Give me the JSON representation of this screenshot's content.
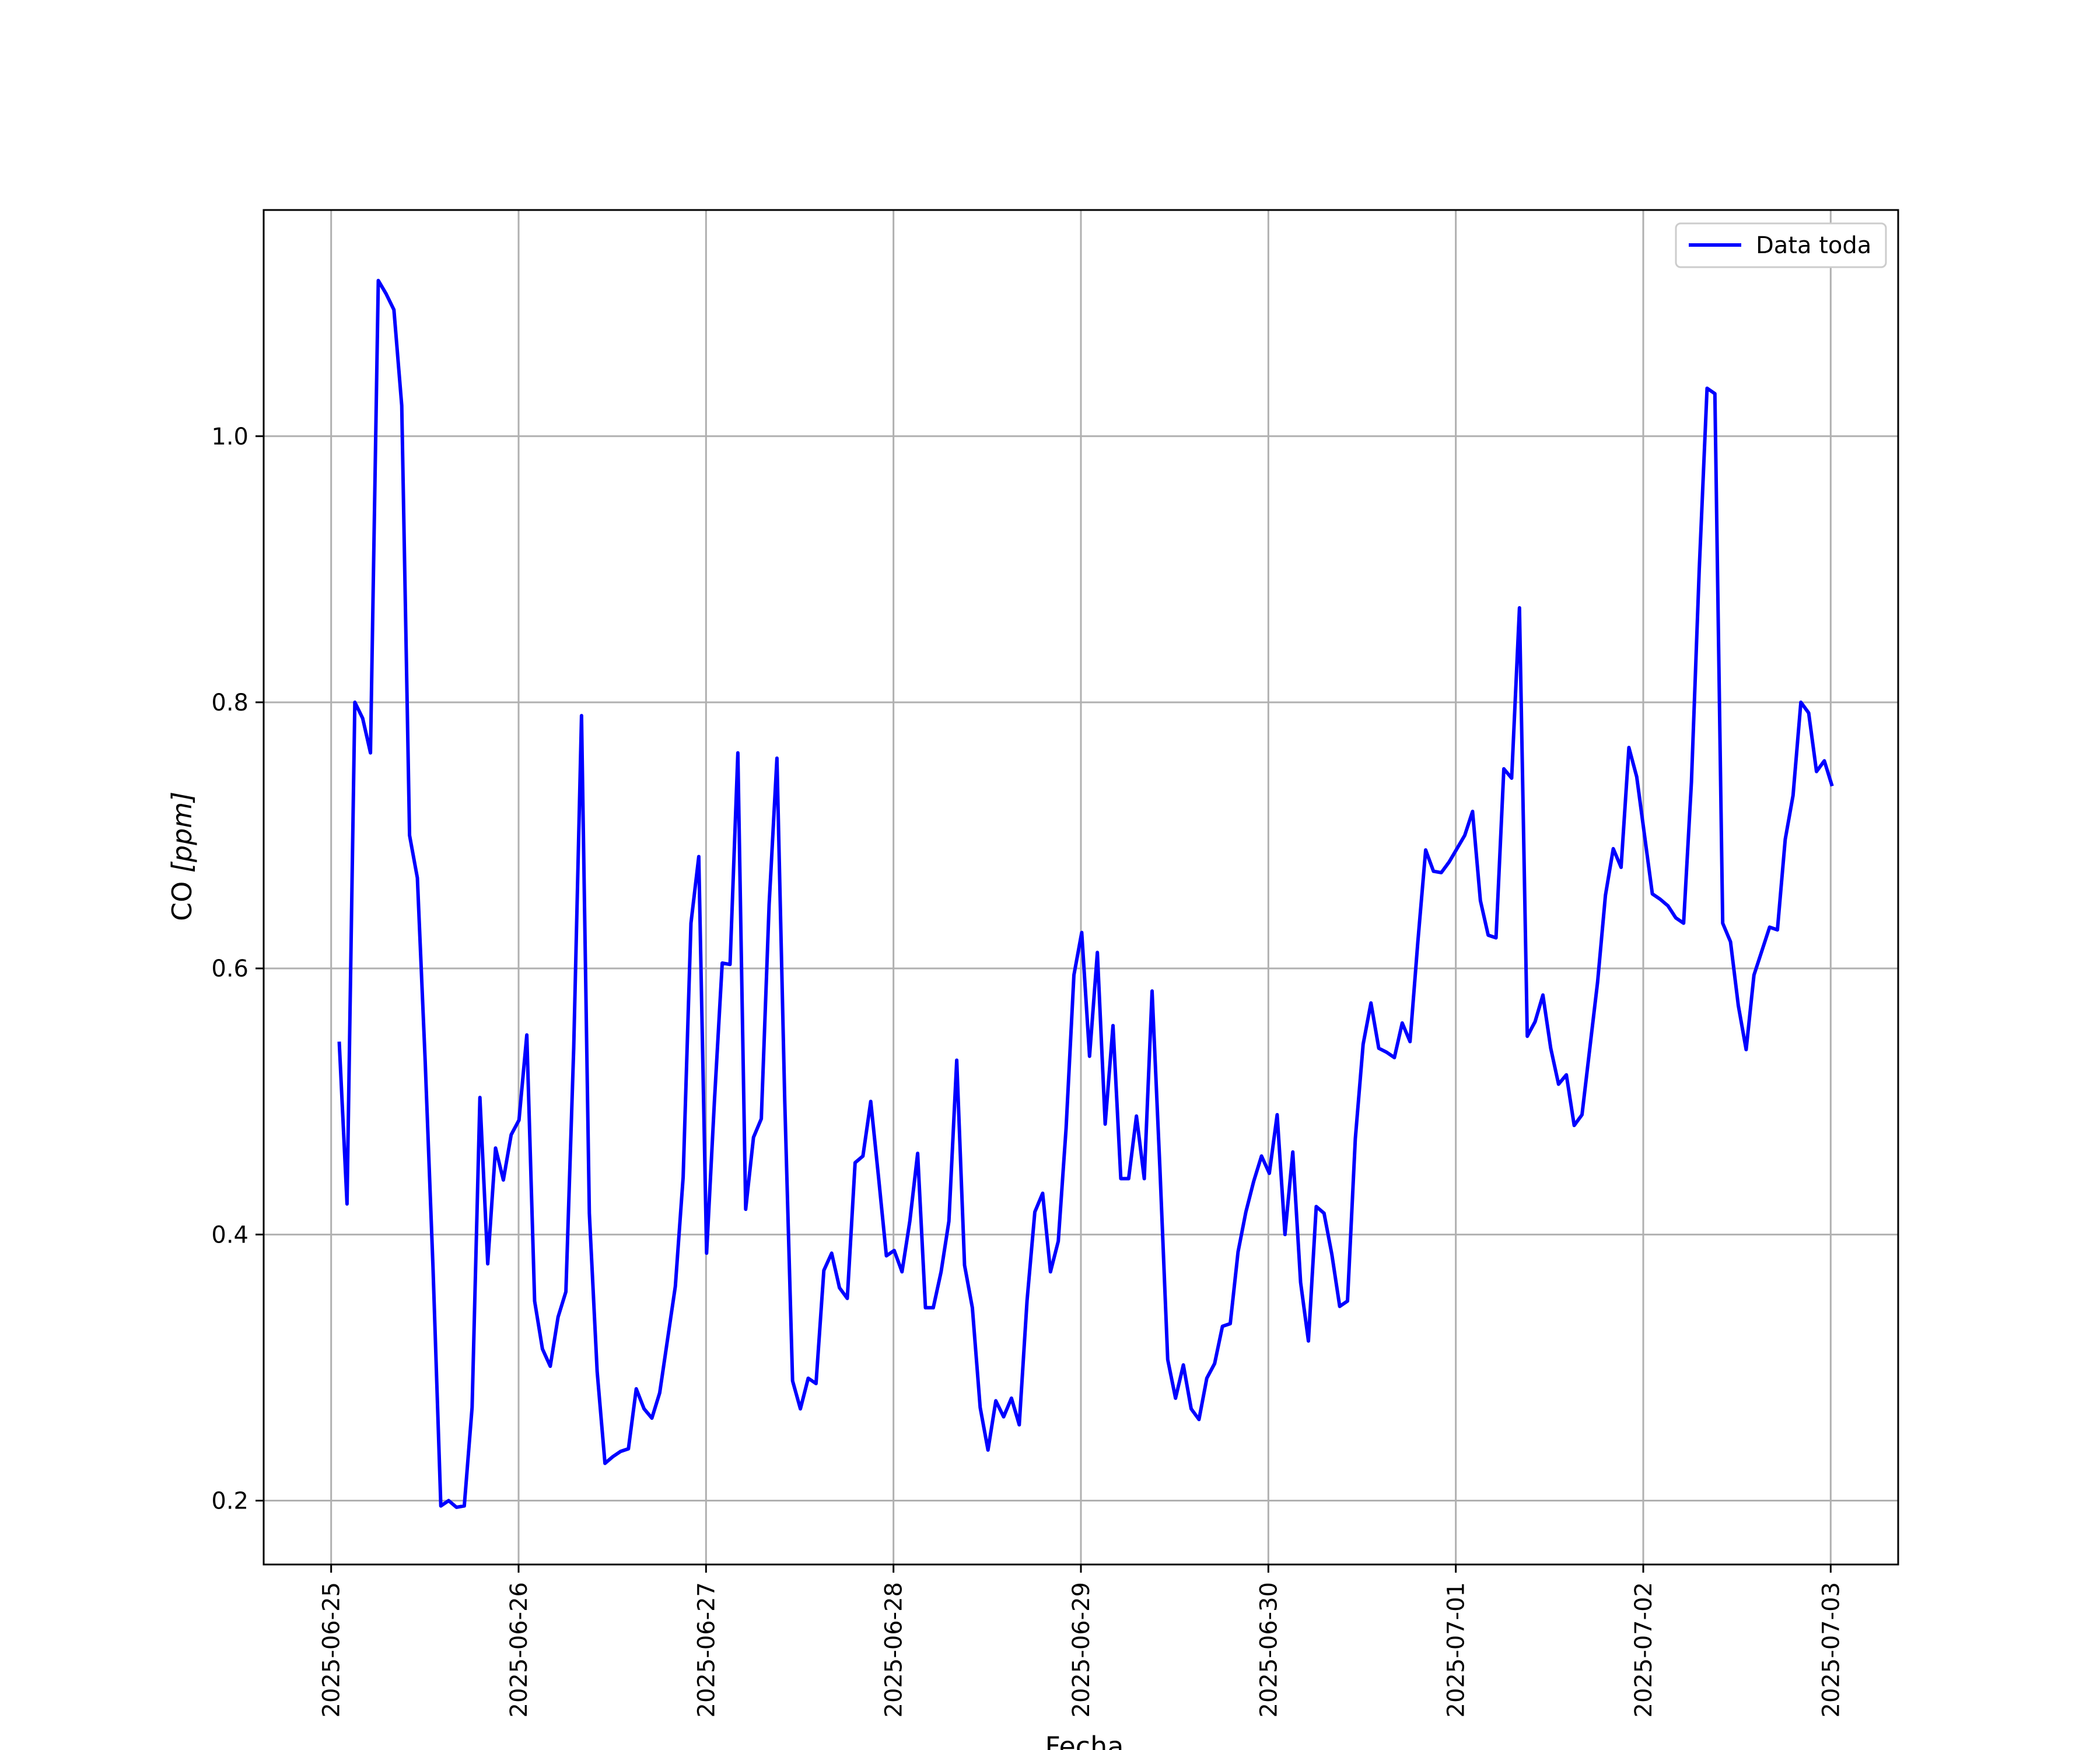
{
  "chart_data": {
    "type": "line",
    "title": "",
    "xlabel": "Fecha",
    "ylabel_prefix": "CO ",
    "ylabel_unit": "[ppm]",
    "grid": true,
    "legend_position": "top-right",
    "xlim": [
      -0.36,
      8.36
    ],
    "ylim": [
      0.152,
      1.17
    ],
    "x_tick_labels": [
      "2025-06-25",
      "2025-06-26",
      "2025-06-27",
      "2025-06-28",
      "2025-06-29",
      "2025-06-30",
      "2025-07-01",
      "2025-07-02",
      "2025-07-03"
    ],
    "y_ticks": [
      0.2,
      0.4,
      0.6,
      0.8,
      1.0
    ],
    "y_tick_labels": [
      "0.2",
      "0.4",
      "0.6",
      "0.8",
      "1.0"
    ],
    "colors": {
      "series": "#0000ff",
      "grid": "#b0b0b0",
      "axes": "#000000",
      "legend_border": "#cccccc"
    },
    "series": [
      {
        "name": "Data toda",
        "x_start": "2025-06-25",
        "x_step_days": 0.0417,
        "values": [
          0.545,
          0.423,
          0.8,
          0.788,
          0.762,
          1.117,
          1.107,
          1.095,
          1.023,
          0.7,
          0.668,
          0.53,
          0.375,
          0.196,
          0.2,
          0.195,
          0.196,
          0.27,
          0.503,
          0.378,
          0.465,
          0.441,
          0.475,
          0.486,
          0.55,
          0.35,
          0.314,
          0.301,
          0.338,
          0.357,
          0.54,
          0.79,
          0.416,
          0.297,
          0.228,
          0.233,
          0.237,
          0.239,
          0.284,
          0.269,
          0.262,
          0.281,
          0.321,
          0.361,
          0.443,
          0.634,
          0.684,
          0.386,
          0.5,
          0.604,
          0.603,
          0.762,
          0.419,
          0.473,
          0.487,
          0.648,
          0.758,
          0.5,
          0.29,
          0.269,
          0.292,
          0.288,
          0.373,
          0.386,
          0.36,
          0.352,
          0.454,
          0.459,
          0.5,
          0.443,
          0.384,
          0.388,
          0.372,
          0.41,
          0.461,
          0.345,
          0.345,
          0.372,
          0.41,
          0.531,
          0.377,
          0.345,
          0.27,
          0.238,
          0.275,
          0.263,
          0.277,
          0.257,
          0.35,
          0.417,
          0.431,
          0.372,
          0.395,
          0.48,
          0.595,
          0.627,
          0.534,
          0.612,
          0.483,
          0.557,
          0.442,
          0.442,
          0.489,
          0.442,
          0.583,
          0.45,
          0.306,
          0.277,
          0.302,
          0.269,
          0.261,
          0.292,
          0.303,
          0.331,
          0.333,
          0.387,
          0.417,
          0.44,
          0.459,
          0.446,
          0.49,
          0.4,
          0.462,
          0.364,
          0.32,
          0.421,
          0.416,
          0.385,
          0.346,
          0.35,
          0.472,
          0.543,
          0.574,
          0.54,
          0.537,
          0.533,
          0.559,
          0.545,
          0.62,
          0.689,
          0.673,
          0.672,
          0.68,
          0.69,
          0.7,
          0.718,
          0.651,
          0.625,
          0.623,
          0.75,
          0.743,
          0.871,
          0.549,
          0.56,
          0.58,
          0.54,
          0.513,
          0.52,
          0.482,
          0.49,
          0.54,
          0.59,
          0.655,
          0.69,
          0.676,
          0.766,
          0.744,
          0.7,
          0.656,
          0.652,
          0.647,
          0.638,
          0.634,
          0.74,
          0.9,
          1.036,
          1.032,
          0.634,
          0.62,
          0.572,
          0.539,
          0.595,
          0.613,
          0.631,
          0.629,
          0.697,
          0.73,
          0.8,
          0.792,
          0.748,
          0.756,
          0.737
        ]
      }
    ]
  }
}
